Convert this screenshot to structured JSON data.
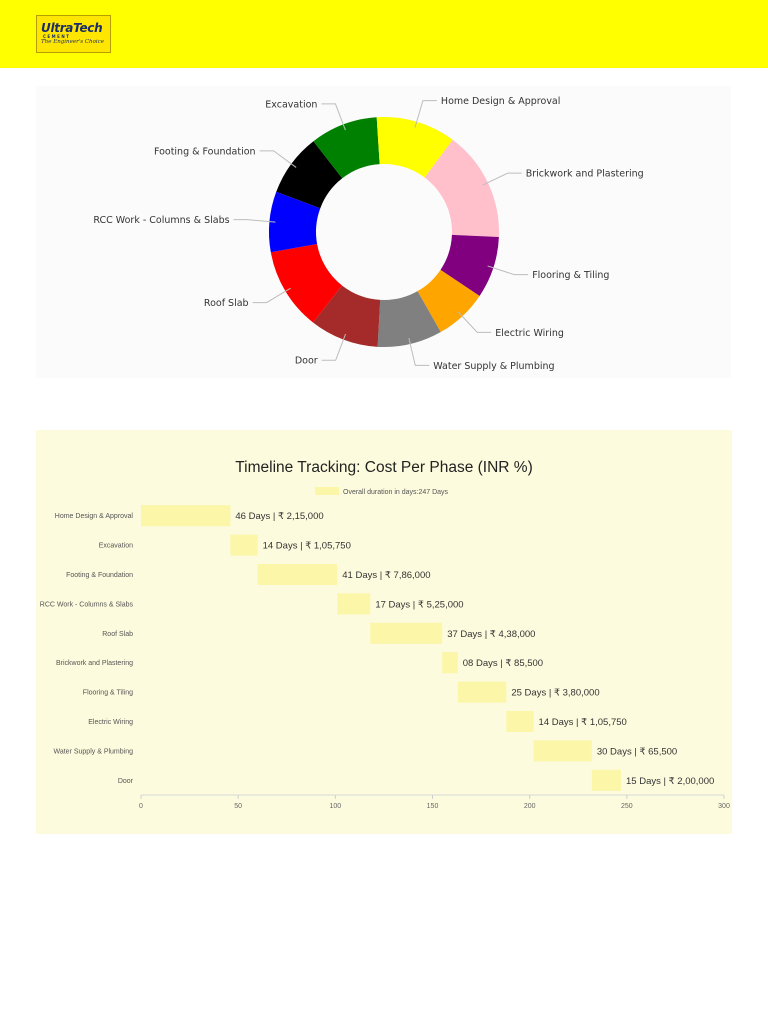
{
  "logo": {
    "brand": "UltraTech",
    "sub": "CEMENT",
    "tagline": "The Engineer's Choice"
  },
  "chart_data": [
    {
      "type": "pie",
      "title": "",
      "categories": [
        "Brickwork and Plastering",
        "Flooring & Tiling",
        "Electric Wiring",
        "Water Supply & Plumbing",
        "Door",
        "Roof Slab",
        "RCC Work - Columns & Slabs",
        "Footing & Foundation",
        "Excavation",
        "Home Design & Approval"
      ],
      "values": [
        15.5,
        8.7,
        7.4,
        9.1,
        9.7,
        11.6,
        8.5,
        8.8,
        9.5,
        11.2
      ],
      "colors": [
        "#ffc0cb",
        "#800080",
        "#ffa500",
        "#808080",
        "#a52a2a",
        "#ff0000",
        "#0000ff",
        "#000000",
        "#008000",
        "#ffff00"
      ],
      "legend": "none"
    },
    {
      "type": "bar",
      "title": "Timeline Tracking: Cost Per Phase (INR %)",
      "legend_label": "Overall duration in days:247 Days",
      "categories": [
        "Home Design & Approval",
        "Excavation",
        "Footing & Foundation",
        "RCC Work - Columns & Slabs",
        "Roof Slab",
        "Brickwork and Plastering",
        "Flooring & Tiling",
        "Electric Wiring",
        "Water Supply & Plumbing",
        "Door"
      ],
      "start": [
        0,
        46,
        60,
        101,
        118,
        155,
        163,
        188,
        202,
        232
      ],
      "end": [
        46,
        60,
        101,
        118,
        155,
        163,
        188,
        202,
        232,
        247
      ],
      "data_labels": [
        "46 Days | ₹ 2,15,000",
        "14 Days | ₹ 1,05,750",
        "41 Days | ₹ 7,86,000",
        "17 Days | ₹ 5,25,000",
        "37 Days | ₹ 4,38,000",
        "08 Days | ₹ 85,500",
        "25 Days | ₹ 3,80,000",
        "14 Days | ₹ 1,05,750",
        "30 Days | ₹ 65,500",
        "15 Days | ₹ 2,00,000"
      ],
      "xlim": [
        0,
        300
      ],
      "xticks": [
        "0",
        "50",
        "100",
        "150",
        "200",
        "250",
        "300"
      ],
      "bar_color": "#fbf6a8",
      "orientation": "horizontal"
    }
  ]
}
